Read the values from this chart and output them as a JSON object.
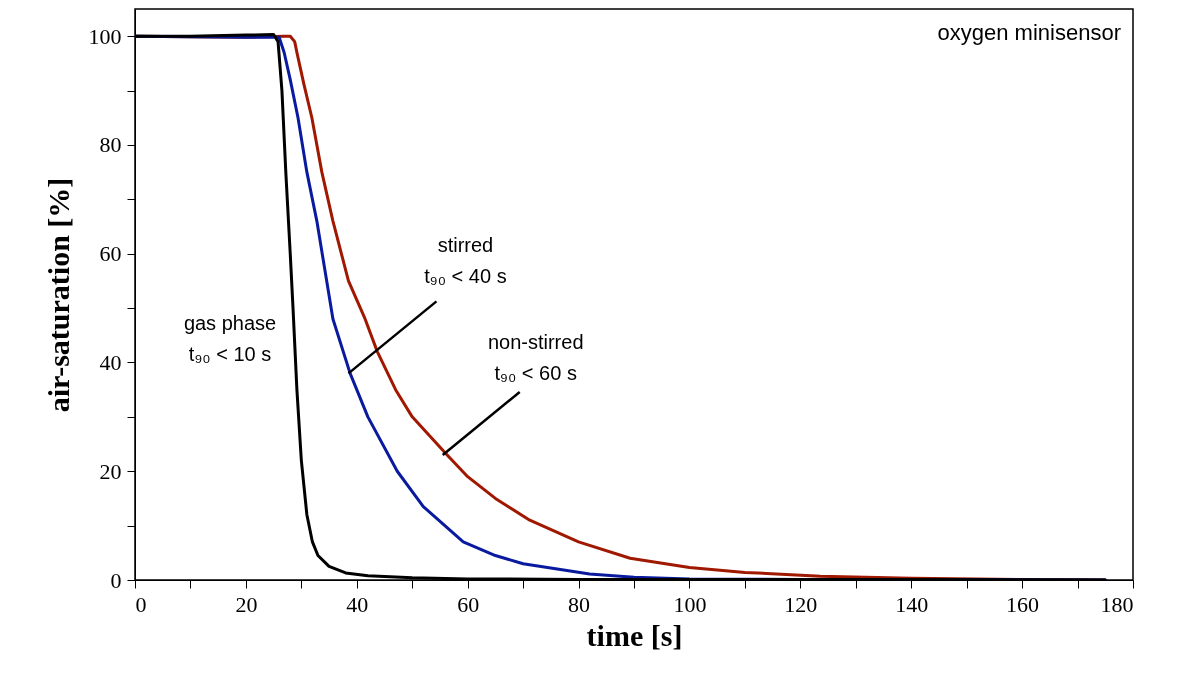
{
  "chart_data": {
    "type": "line",
    "title": "oxygen minisensor",
    "xlabel": "time [s]",
    "ylabel": "air-saturation [%]",
    "xlim": [
      0,
      180
    ],
    "ylim": [
      0,
      105
    ],
    "xticks": [
      0,
      {
        "value": 10,
        "label": null
      },
      20,
      {
        "value": 30,
        "label": null
      },
      40,
      {
        "value": 50,
        "label": null
      },
      60,
      {
        "value": 70,
        "label": null
      },
      80,
      {
        "value": 90,
        "label": null
      },
      100,
      {
        "value": 110,
        "label": null
      },
      120,
      {
        "value": 130,
        "label": null
      },
      140,
      {
        "value": 150,
        "label": null
      },
      160,
      {
        "value": 170,
        "label": null
      },
      180
    ],
    "yticks": [
      0,
      {
        "value": 10,
        "label": null
      },
      20,
      {
        "value": 30,
        "label": null
      },
      40,
      {
        "value": 50,
        "label": null
      },
      60,
      {
        "value": 70,
        "label": null
      },
      80,
      {
        "value": 90,
        "label": null
      },
      100
    ],
    "grid": false,
    "line_style": "solid",
    "marker": "none",
    "series": [
      {
        "color": "#a01800",
        "x": [
          0,
          20,
          27,
          28,
          28.8,
          29.2,
          30.5,
          31.9,
          33.7,
          35.7,
          38.5,
          41.5,
          43.7,
          47,
          50,
          56.3,
          60,
          65,
          71.2,
          80,
          89.3,
          100,
          110,
          123.6,
          140,
          160,
          175
        ],
        "values": [
          100,
          99.8,
          100,
          100,
          99,
          97,
          91,
          85,
          75,
          66,
          55,
          48,
          42,
          35,
          30,
          23,
          19,
          15,
          11,
          7,
          4,
          2.3,
          1.4,
          0.7,
          0.3,
          0.1,
          0
        ]
      },
      {
        "color": "#0a1a9e",
        "x": [
          0,
          20,
          26,
          26.9,
          28,
          29.4,
          31,
          32.8,
          35.7,
          38.8,
          42,
          47.3,
          52,
          59.2,
          65,
          70,
          82,
          90,
          100,
          120,
          175
        ],
        "values": [
          100,
          99.8,
          99.8,
          97,
          92,
          85,
          75,
          66,
          48,
          38,
          30,
          20,
          13.5,
          7,
          4.5,
          3,
          1.1,
          0.5,
          0.2,
          0.1,
          0
        ]
      },
      {
        "color": "#000000",
        "x": [
          0,
          10,
          20,
          25,
          25.8,
          26.5,
          27.2,
          28,
          28.5,
          29.2,
          30,
          31,
          32,
          33,
          35,
          38,
          42,
          50,
          60,
          80,
          100,
          140,
          175
        ],
        "values": [
          100,
          100,
          100.2,
          100.3,
          99,
          90,
          75,
          60,
          50,
          35,
          22,
          12,
          7,
          4.5,
          2.5,
          1.3,
          0.8,
          0.4,
          0.2,
          0.1,
          0.1,
          0.1,
          0
        ]
      }
    ],
    "annotations": [
      {
        "text": "gas phase\nt₉₀ < 10 s",
        "x": 28.5,
        "y": 50
      },
      {
        "text": "stirred\nt₉₀ < 40 s",
        "x": 38.5,
        "y": 38
      },
      {
        "text": "non-stirred\nt₉₀ < 60 s",
        "x": 55.5,
        "y": 23
      }
    ]
  }
}
